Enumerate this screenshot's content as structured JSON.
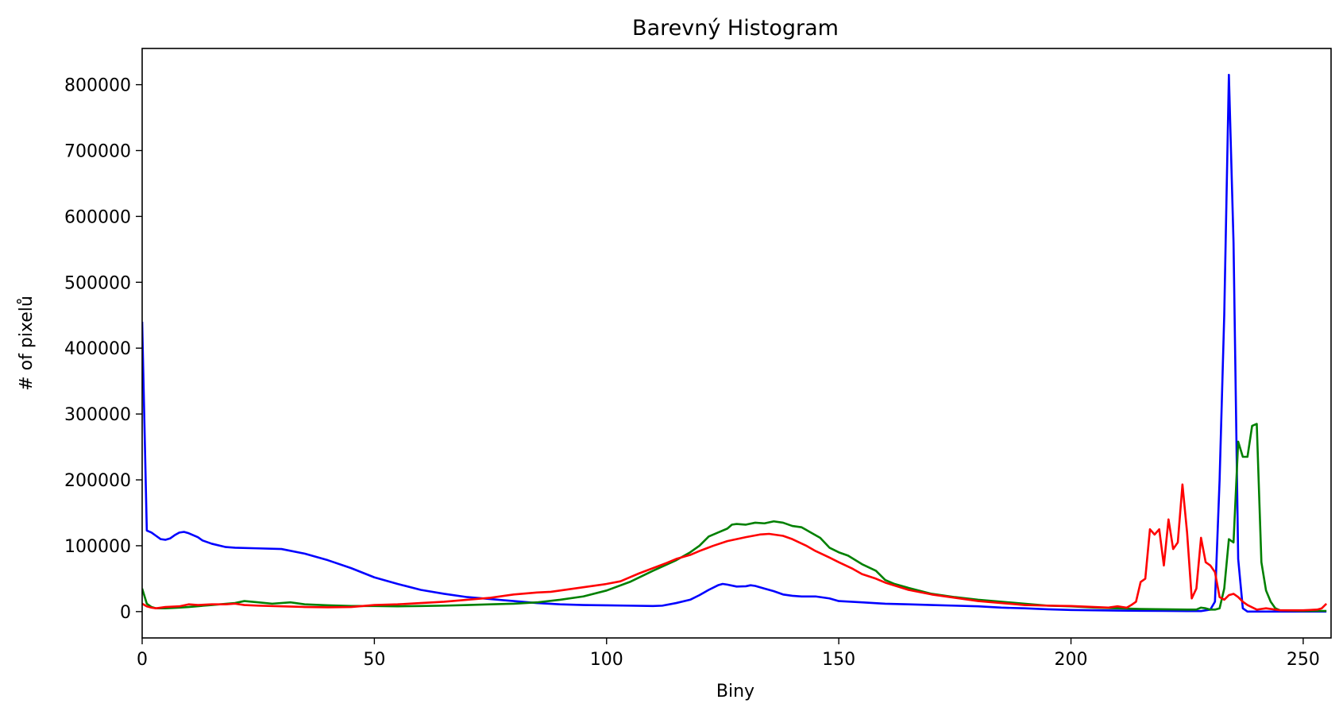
{
  "chart_data": {
    "type": "line",
    "title": "Barevný Histogram",
    "xlabel": "Biny",
    "ylabel": "# of pixelů",
    "xlim": [
      0,
      256
    ],
    "ylim": [
      -40000,
      855000
    ],
    "x_ticks": [
      0,
      50,
      100,
      150,
      200,
      250
    ],
    "x_tick_labels": [
      "0",
      "50",
      "100",
      "150",
      "200",
      "250"
    ],
    "y_ticks": [
      0,
      100000,
      200000,
      300000,
      400000,
      500000,
      600000,
      700000,
      800000
    ],
    "y_tick_labels": [
      "0",
      "100000",
      "200000",
      "300000",
      "400000",
      "500000",
      "600000",
      "700000",
      "800000"
    ],
    "grid": false,
    "legend": "none",
    "series": [
      {
        "name": "blue",
        "color": "#0000ff",
        "points": [
          [
            0,
            440000
          ],
          [
            1,
            123000
          ],
          [
            2,
            120000
          ],
          [
            3,
            115000
          ],
          [
            4,
            110000
          ],
          [
            5,
            109000
          ],
          [
            6,
            111000
          ],
          [
            7,
            116000
          ],
          [
            8,
            120000
          ],
          [
            9,
            121000
          ],
          [
            10,
            119000
          ],
          [
            12,
            113000
          ],
          [
            13,
            108000
          ],
          [
            15,
            103000
          ],
          [
            18,
            98000
          ],
          [
            20,
            97000
          ],
          [
            25,
            96000
          ],
          [
            30,
            95000
          ],
          [
            35,
            88000
          ],
          [
            40,
            78000
          ],
          [
            45,
            66000
          ],
          [
            50,
            52000
          ],
          [
            55,
            42000
          ],
          [
            60,
            33000
          ],
          [
            65,
            27000
          ],
          [
            70,
            22000
          ],
          [
            75,
            19000
          ],
          [
            80,
            16000
          ],
          [
            85,
            13000
          ],
          [
            90,
            11000
          ],
          [
            95,
            10000
          ],
          [
            100,
            9500
          ],
          [
            105,
            9000
          ],
          [
            110,
            8500
          ],
          [
            112,
            9000
          ],
          [
            115,
            13000
          ],
          [
            118,
            18000
          ],
          [
            120,
            25000
          ],
          [
            122,
            33000
          ],
          [
            124,
            40000
          ],
          [
            125,
            42000
          ],
          [
            126,
            41000
          ],
          [
            128,
            38000
          ],
          [
            130,
            38500
          ],
          [
            131,
            40000
          ],
          [
            132,
            39000
          ],
          [
            134,
            35000
          ],
          [
            136,
            31000
          ],
          [
            138,
            26000
          ],
          [
            140,
            24000
          ],
          [
            142,
            23000
          ],
          [
            145,
            23000
          ],
          [
            148,
            20000
          ],
          [
            150,
            16000
          ],
          [
            155,
            14000
          ],
          [
            160,
            12000
          ],
          [
            165,
            11000
          ],
          [
            170,
            10000
          ],
          [
            175,
            9000
          ],
          [
            180,
            8000
          ],
          [
            185,
            6000
          ],
          [
            190,
            5000
          ],
          [
            195,
            3500
          ],
          [
            200,
            2500
          ],
          [
            205,
            2000
          ],
          [
            210,
            1500
          ],
          [
            215,
            1200
          ],
          [
            220,
            1000
          ],
          [
            225,
            800
          ],
          [
            228,
            800
          ],
          [
            230,
            3000
          ],
          [
            231,
            15000
          ],
          [
            232,
            200000
          ],
          [
            233,
            450000
          ],
          [
            234,
            815000
          ],
          [
            235,
            560000
          ],
          [
            236,
            80000
          ],
          [
            237,
            5000
          ],
          [
            238,
            0
          ],
          [
            240,
            0
          ],
          [
            245,
            0
          ],
          [
            250,
            0
          ],
          [
            255,
            0
          ]
        ]
      },
      {
        "name": "green",
        "color": "#008000",
        "points": [
          [
            0,
            35000
          ],
          [
            1,
            12000
          ],
          [
            2,
            7000
          ],
          [
            3,
            5000
          ],
          [
            5,
            5000
          ],
          [
            8,
            6000
          ],
          [
            10,
            7000
          ],
          [
            15,
            10000
          ],
          [
            20,
            13000
          ],
          [
            22,
            16000
          ],
          [
            25,
            14000
          ],
          [
            28,
            12000
          ],
          [
            32,
            14000
          ],
          [
            33,
            13000
          ],
          [
            35,
            11000
          ],
          [
            40,
            9500
          ],
          [
            45,
            8500
          ],
          [
            50,
            8500
          ],
          [
            55,
            8000
          ],
          [
            60,
            8500
          ],
          [
            65,
            9000
          ],
          [
            70,
            10000
          ],
          [
            75,
            11000
          ],
          [
            80,
            12000
          ],
          [
            85,
            14000
          ],
          [
            90,
            18000
          ],
          [
            95,
            23000
          ],
          [
            100,
            32000
          ],
          [
            105,
            45000
          ],
          [
            110,
            62000
          ],
          [
            115,
            78000
          ],
          [
            118,
            90000
          ],
          [
            120,
            100000
          ],
          [
            122,
            114000
          ],
          [
            124,
            120000
          ],
          [
            126,
            126000
          ],
          [
            127,
            132000
          ],
          [
            128,
            133000
          ],
          [
            130,
            132000
          ],
          [
            132,
            135000
          ],
          [
            134,
            134000
          ],
          [
            136,
            137000
          ],
          [
            138,
            135000
          ],
          [
            140,
            130000
          ],
          [
            142,
            128000
          ],
          [
            144,
            120000
          ],
          [
            146,
            112000
          ],
          [
            148,
            97000
          ],
          [
            150,
            90000
          ],
          [
            152,
            85000
          ],
          [
            155,
            72000
          ],
          [
            158,
            62000
          ],
          [
            160,
            48000
          ],
          [
            162,
            42000
          ],
          [
            165,
            36000
          ],
          [
            170,
            27000
          ],
          [
            175,
            22000
          ],
          [
            180,
            18000
          ],
          [
            185,
            15000
          ],
          [
            190,
            12000
          ],
          [
            195,
            9000
          ],
          [
            200,
            8000
          ],
          [
            205,
            6000
          ],
          [
            210,
            5000
          ],
          [
            215,
            4000
          ],
          [
            220,
            3500
          ],
          [
            225,
            3000
          ],
          [
            227,
            3000
          ],
          [
            228,
            6000
          ],
          [
            229,
            5000
          ],
          [
            230,
            3000
          ],
          [
            231,
            3000
          ],
          [
            232,
            5000
          ],
          [
            233,
            35000
          ],
          [
            234,
            110000
          ],
          [
            235,
            105000
          ],
          [
            236,
            258000
          ],
          [
            237,
            235000
          ],
          [
            238,
            235000
          ],
          [
            239,
            282000
          ],
          [
            240,
            285000
          ],
          [
            241,
            75000
          ],
          [
            242,
            32000
          ],
          [
            243,
            15000
          ],
          [
            244,
            5000
          ],
          [
            245,
            2000
          ],
          [
            250,
            1000
          ],
          [
            255,
            1000
          ]
        ]
      },
      {
        "name": "red",
        "color": "#ff0000",
        "points": [
          [
            0,
            12000
          ],
          [
            1,
            8000
          ],
          [
            2,
            6000
          ],
          [
            3,
            5000
          ],
          [
            5,
            7000
          ],
          [
            8,
            8000
          ],
          [
            10,
            11000
          ],
          [
            12,
            10000
          ],
          [
            15,
            11000
          ],
          [
            18,
            11000
          ],
          [
            20,
            12000
          ],
          [
            22,
            10000
          ],
          [
            25,
            9000
          ],
          [
            30,
            8000
          ],
          [
            35,
            7000
          ],
          [
            40,
            6500
          ],
          [
            45,
            7000
          ],
          [
            50,
            10000
          ],
          [
            55,
            11000
          ],
          [
            60,
            13000
          ],
          [
            65,
            15000
          ],
          [
            70,
            18000
          ],
          [
            75,
            21000
          ],
          [
            80,
            26000
          ],
          [
            85,
            29000
          ],
          [
            88,
            30000
          ],
          [
            90,
            32000
          ],
          [
            95,
            37000
          ],
          [
            100,
            42000
          ],
          [
            103,
            46000
          ],
          [
            105,
            52000
          ],
          [
            107,
            58000
          ],
          [
            110,
            66000
          ],
          [
            113,
            74000
          ],
          [
            115,
            80000
          ],
          [
            118,
            86000
          ],
          [
            120,
            92000
          ],
          [
            123,
            100000
          ],
          [
            126,
            107000
          ],
          [
            130,
            113000
          ],
          [
            133,
            117000
          ],
          [
            135,
            118000
          ],
          [
            138,
            115000
          ],
          [
            140,
            110000
          ],
          [
            143,
            100000
          ],
          [
            145,
            92000
          ],
          [
            148,
            82000
          ],
          [
            150,
            75000
          ],
          [
            153,
            65000
          ],
          [
            155,
            57000
          ],
          [
            158,
            50000
          ],
          [
            160,
            44000
          ],
          [
            165,
            33000
          ],
          [
            170,
            26000
          ],
          [
            175,
            21000
          ],
          [
            180,
            16000
          ],
          [
            185,
            13000
          ],
          [
            190,
            10000
          ],
          [
            195,
            9000
          ],
          [
            200,
            8500
          ],
          [
            205,
            7000
          ],
          [
            208,
            6000
          ],
          [
            210,
            8000
          ],
          [
            212,
            6000
          ],
          [
            213,
            10000
          ],
          [
            214,
            15000
          ],
          [
            215,
            45000
          ],
          [
            216,
            50000
          ],
          [
            217,
            125000
          ],
          [
            218,
            117000
          ],
          [
            219,
            125000
          ],
          [
            220,
            70000
          ],
          [
            221,
            140000
          ],
          [
            222,
            95000
          ],
          [
            223,
            105000
          ],
          [
            224,
            193000
          ],
          [
            225,
            120000
          ],
          [
            226,
            20000
          ],
          [
            227,
            35000
          ],
          [
            228,
            112000
          ],
          [
            229,
            75000
          ],
          [
            230,
            70000
          ],
          [
            231,
            60000
          ],
          [
            232,
            22000
          ],
          [
            233,
            18000
          ],
          [
            234,
            25000
          ],
          [
            235,
            27000
          ],
          [
            236,
            22000
          ],
          [
            237,
            15000
          ],
          [
            238,
            10000
          ],
          [
            240,
            3000
          ],
          [
            242,
            5000
          ],
          [
            245,
            2000
          ],
          [
            250,
            2000
          ],
          [
            253,
            3000
          ],
          [
            254,
            5000
          ],
          [
            255,
            12000
          ]
        ]
      }
    ]
  }
}
